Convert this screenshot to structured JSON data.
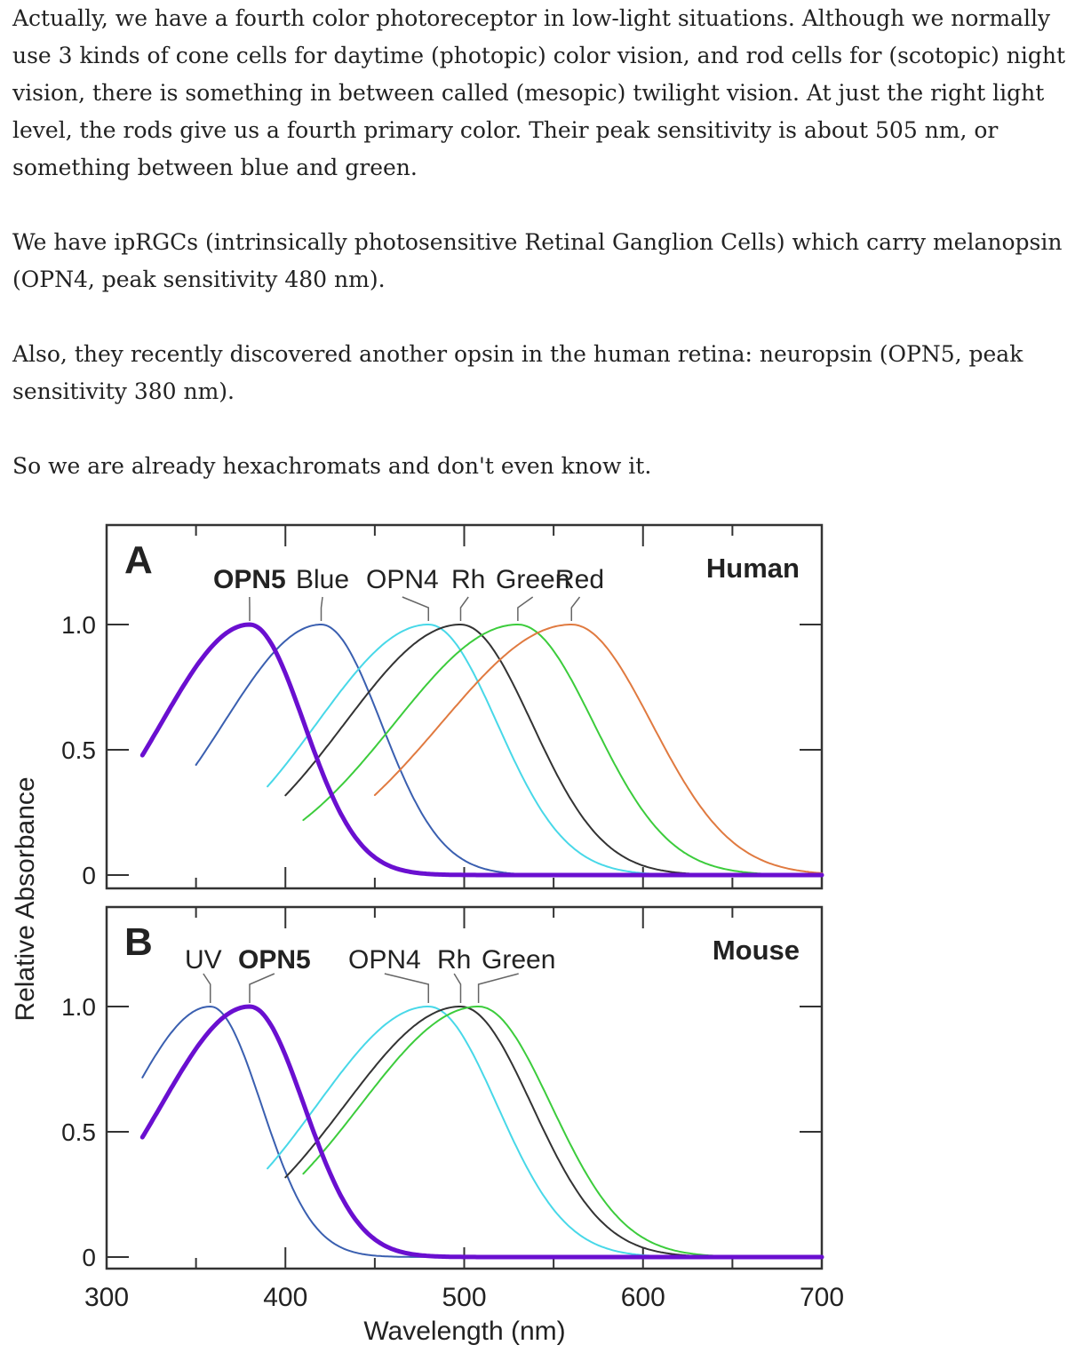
{
  "paragraphs": [
    "Actually, we have a fourth color photoreceptor in low-light situations. Although we normally use 3 kinds of cone cells for daytime (photopic) color vision, and rod cells for (scotopic) night vision, there is something in between called (mesopic) twilight vision. At just the right light level, the rods give us a fourth primary color. Their peak sensitivity is about 505 nm, or something between blue and green.",
    "We have ipRGCs (intrinsically photosensitive Retinal Ganglion Cells) which carry melanopsin (OPN4, peak sensitivity 480 nm).",
    "Also, they recently discovered another opsin in the human retina: neuropsin (OPN5, peak sensitivity 380 nm).",
    "So  we are already hexachromats and don't even know it."
  ],
  "chart_data": {
    "type": "line",
    "xlabel": "Wavelength (nm)",
    "ylabel": "Relative Absorbance",
    "xlim": [
      300,
      700
    ],
    "ylim": [
      0,
      1.0
    ],
    "xticks": [
      "300",
      "400",
      "500",
      "600",
      "700"
    ],
    "yticks": [
      "0",
      "0.5",
      "1.0"
    ],
    "panels": [
      {
        "letter": "A",
        "title": "Human",
        "series": [
          {
            "name": "OPN5",
            "peak_nm": 380,
            "start_nm": 320,
            "color": "#6a0fd0",
            "bold": true
          },
          {
            "name": "Blue",
            "peak_nm": 420,
            "start_nm": 350,
            "color": "#3a5fb0",
            "bold": false
          },
          {
            "name": "OPN4",
            "peak_nm": 480,
            "start_nm": 390,
            "color": "#48d8e8",
            "bold": false
          },
          {
            "name": "Rh",
            "peak_nm": 498,
            "start_nm": 400,
            "color": "#333333",
            "bold": false
          },
          {
            "name": "Green",
            "peak_nm": 530,
            "start_nm": 410,
            "color": "#3ccc3c",
            "bold": false
          },
          {
            "name": "Red",
            "peak_nm": 560,
            "start_nm": 450,
            "color": "#e07a40",
            "bold": false
          }
        ]
      },
      {
        "letter": "B",
        "title": "Mouse",
        "series": [
          {
            "name": "UV",
            "peak_nm": 358,
            "start_nm": 320,
            "color": "#3a5fb0",
            "bold": false
          },
          {
            "name": "OPN5",
            "peak_nm": 380,
            "start_nm": 320,
            "color": "#6a0fd0",
            "bold": true
          },
          {
            "name": "OPN4",
            "peak_nm": 480,
            "start_nm": 390,
            "color": "#48d8e8",
            "bold": false
          },
          {
            "name": "Rh",
            "peak_nm": 498,
            "start_nm": 400,
            "color": "#333333",
            "bold": false
          },
          {
            "name": "Green",
            "peak_nm": 508,
            "start_nm": 410,
            "color": "#3ccc3c",
            "bold": false
          }
        ]
      }
    ]
  }
}
